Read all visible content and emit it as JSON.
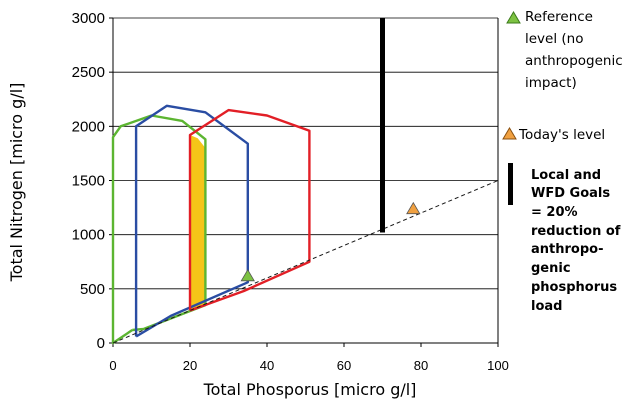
{
  "chart_data": {
    "type": "line",
    "xlabel": "Total Phosporus [micro g/l]",
    "ylabel": "Total Nitrogen [micro g/l]",
    "xlim": [
      0,
      100
    ],
    "ylim": [
      0,
      3000
    ],
    "x_ticks": [
      "0",
      "20",
      "40",
      "60",
      "80",
      "100"
    ],
    "y_ticks": [
      "0",
      "500",
      "1000",
      "1500",
      "2000",
      "2500",
      "3000"
    ],
    "grid": "horizontal",
    "legend_position": "right",
    "series": [
      {
        "color": "#5cb531",
        "values": [
          [
            5,
            120
          ],
          [
            0,
            0
          ],
          [
            0,
            1900
          ],
          [
            2,
            2000
          ],
          [
            10,
            2100
          ],
          [
            18,
            2050
          ],
          [
            24,
            1880
          ],
          [
            24,
            350
          ],
          [
            8,
            130
          ],
          [
            5,
            120
          ]
        ]
      },
      {
        "color": "#2a4da3",
        "values": [
          [
            6,
            60
          ],
          [
            6,
            2000
          ],
          [
            14,
            2190
          ],
          [
            24,
            2130
          ],
          [
            35,
            1840
          ],
          [
            35,
            560
          ],
          [
            15,
            250
          ],
          [
            6,
            60
          ]
        ]
      },
      {
        "color": "#e21f26",
        "values": [
          [
            20,
            300
          ],
          [
            20,
            1920
          ],
          [
            30,
            2150
          ],
          [
            40,
            2100
          ],
          [
            51,
            1960
          ],
          [
            51,
            750
          ],
          [
            34,
            480
          ],
          [
            20,
            300
          ]
        ]
      },
      {
        "color": "#1a1a1a",
        "dashed": true,
        "values": [
          [
            0,
            0
          ],
          [
            100,
            1500
          ]
        ]
      }
    ],
    "shaded_band": {
      "color": "#f5c518",
      "values": [
        [
          20,
          300
        ],
        [
          20,
          1920
        ],
        [
          22,
          1890
        ],
        [
          24,
          1800
        ],
        [
          24,
          340
        ],
        [
          20,
          300
        ]
      ]
    },
    "points": [
      {
        "label": "Reference level (no anthropogenic impact)",
        "x": 35,
        "y": 620,
        "color": "#7dc242"
      },
      {
        "label": "Today's level",
        "x": 78,
        "y": 1240,
        "color": "#f0a040"
      }
    ],
    "goal_line": {
      "x": 70,
      "y_from": 1020,
      "y_to": 3000,
      "color": "#000000"
    }
  },
  "legend": {
    "reference_lines": [
      "Reference",
      "level (no",
      "anthropogenic",
      "impact)"
    ],
    "today_label": "Today's level"
  },
  "note": {
    "lines": [
      "Local and",
      "WFD Goals",
      "=  20%",
      "reduction of",
      "anthropo-",
      "genic",
      "phosphorus",
      "load"
    ]
  }
}
